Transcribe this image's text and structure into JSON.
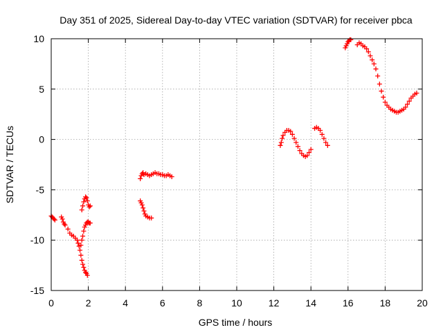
{
  "chart_data": {
    "type": "scatter",
    "title": "Day 351 of 2025, Sidereal Day-to-day VTEC variation (SDTVAR) for receiver pbca",
    "xlabel": "GPS time / hours",
    "ylabel": "SDTVAR / TECUs",
    "xlim": [
      0,
      20
    ],
    "ylim": [
      -15,
      10
    ],
    "xticks": [
      0,
      2,
      4,
      6,
      8,
      10,
      12,
      14,
      16,
      18,
      20
    ],
    "yticks": [
      -15,
      -10,
      -5,
      0,
      5,
      10
    ],
    "grid": true,
    "marker": "+",
    "color": "#ff0000",
    "series": [
      {
        "name": "pbca",
        "segments": [
          [
            [
              0.0,
              -7.6
            ],
            [
              0.05,
              -7.7
            ],
            [
              0.1,
              -7.8
            ],
            [
              0.15,
              -7.9
            ],
            [
              0.2,
              -8.0
            ]
          ],
          [
            [
              0.55,
              -7.7
            ],
            [
              0.6,
              -7.9
            ],
            [
              0.65,
              -8.2
            ],
            [
              0.7,
              -8.4
            ],
            [
              0.75,
              -8.5
            ]
          ],
          [
            [
              0.9,
              -8.9
            ],
            [
              1.0,
              -9.3
            ],
            [
              1.1,
              -9.5
            ],
            [
              1.2,
              -9.6
            ],
            [
              1.3,
              -9.8
            ],
            [
              1.4,
              -10.0
            ],
            [
              1.45,
              -10.3
            ],
            [
              1.5,
              -10.6
            ],
            [
              1.55,
              -11.0
            ],
            [
              1.6,
              -11.5
            ],
            [
              1.65,
              -12.0
            ],
            [
              1.7,
              -12.4
            ],
            [
              1.75,
              -12.7
            ],
            [
              1.8,
              -13.0
            ],
            [
              1.85,
              -13.2
            ],
            [
              1.9,
              -13.3
            ],
            [
              1.95,
              -13.5
            ]
          ],
          [
            [
              1.6,
              -10.5
            ],
            [
              1.65,
              -10.0
            ],
            [
              1.7,
              -9.6
            ],
            [
              1.75,
              -9.1
            ],
            [
              1.8,
              -8.7
            ],
            [
              1.85,
              -8.5
            ],
            [
              1.9,
              -8.3
            ],
            [
              1.95,
              -8.2
            ],
            [
              2.0,
              -8.2
            ],
            [
              2.05,
              -8.3
            ],
            [
              2.1,
              -8.3
            ]
          ],
          [
            [
              1.65,
              -7.0
            ],
            [
              1.7,
              -6.6
            ],
            [
              1.75,
              -6.2
            ],
            [
              1.8,
              -5.9
            ],
            [
              1.85,
              -5.7
            ],
            [
              1.9,
              -5.8
            ],
            [
              1.95,
              -6.1
            ],
            [
              2.0,
              -6.5
            ],
            [
              2.05,
              -6.7
            ],
            [
              2.1,
              -6.6
            ]
          ],
          [
            [
              4.8,
              -3.9
            ],
            [
              4.85,
              -3.6
            ],
            [
              4.9,
              -3.4
            ],
            [
              4.95,
              -3.3
            ],
            [
              5.0,
              -3.5
            ],
            [
              5.1,
              -3.4
            ],
            [
              5.2,
              -3.5
            ],
            [
              5.3,
              -3.6
            ],
            [
              5.4,
              -3.5
            ],
            [
              5.5,
              -3.4
            ],
            [
              5.6,
              -3.3
            ],
            [
              5.7,
              -3.4
            ],
            [
              5.8,
              -3.4
            ],
            [
              5.9,
              -3.5
            ],
            [
              6.0,
              -3.5
            ],
            [
              6.1,
              -3.6
            ],
            [
              6.2,
              -3.6
            ],
            [
              6.3,
              -3.5
            ],
            [
              6.4,
              -3.6
            ],
            [
              6.5,
              -3.7
            ]
          ],
          [
            [
              4.8,
              -6.1
            ],
            [
              4.85,
              -6.3
            ],
            [
              4.9,
              -6.5
            ],
            [
              4.95,
              -6.8
            ],
            [
              5.0,
              -7.1
            ],
            [
              5.05,
              -7.4
            ],
            [
              5.1,
              -7.6
            ],
            [
              5.2,
              -7.7
            ],
            [
              5.3,
              -7.8
            ],
            [
              5.4,
              -7.8
            ]
          ],
          [
            [
              12.35,
              -0.6
            ],
            [
              12.4,
              -0.3
            ],
            [
              12.45,
              0.1
            ],
            [
              12.5,
              0.4
            ],
            [
              12.6,
              0.7
            ],
            [
              12.7,
              0.9
            ],
            [
              12.8,
              0.9
            ],
            [
              12.9,
              0.8
            ],
            [
              13.0,
              0.5
            ],
            [
              13.1,
              0.1
            ],
            [
              13.2,
              -0.3
            ],
            [
              13.3,
              -0.7
            ],
            [
              13.4,
              -1.1
            ],
            [
              13.5,
              -1.4
            ],
            [
              13.6,
              -1.6
            ],
            [
              13.7,
              -1.7
            ],
            [
              13.8,
              -1.6
            ],
            [
              13.9,
              -1.3
            ],
            [
              14.0,
              -1.0
            ]
          ],
          [
            [
              14.2,
              1.1
            ],
            [
              14.3,
              1.2
            ],
            [
              14.4,
              1.1
            ],
            [
              14.5,
              0.9
            ],
            [
              14.6,
              0.5
            ],
            [
              14.7,
              0.1
            ],
            [
              14.8,
              -0.3
            ],
            [
              14.9,
              -0.6
            ]
          ],
          [
            [
              15.85,
              9.1
            ],
            [
              15.9,
              9.3
            ],
            [
              15.95,
              9.5
            ],
            [
              16.0,
              9.7
            ],
            [
              16.05,
              9.8
            ],
            [
              16.1,
              9.9
            ],
            [
              16.15,
              9.9
            ]
          ],
          [
            [
              16.5,
              9.4
            ],
            [
              16.6,
              9.6
            ],
            [
              16.7,
              9.5
            ],
            [
              16.8,
              9.3
            ],
            [
              16.9,
              9.2
            ],
            [
              17.0,
              9.0
            ],
            [
              17.1,
              8.7
            ],
            [
              17.2,
              8.3
            ],
            [
              17.3,
              7.9
            ],
            [
              17.4,
              7.5
            ],
            [
              17.5,
              7.0
            ],
            [
              17.6,
              6.3
            ],
            [
              17.7,
              5.5
            ],
            [
              17.8,
              4.8
            ],
            [
              17.9,
              4.2
            ],
            [
              18.0,
              3.7
            ],
            [
              18.1,
              3.4
            ],
            [
              18.2,
              3.2
            ],
            [
              18.3,
              3.0
            ],
            [
              18.4,
              2.9
            ],
            [
              18.5,
              2.8
            ],
            [
              18.6,
              2.7
            ],
            [
              18.7,
              2.7
            ],
            [
              18.8,
              2.8
            ],
            [
              18.9,
              2.9
            ],
            [
              19.0,
              3.0
            ],
            [
              19.1,
              3.2
            ],
            [
              19.2,
              3.5
            ],
            [
              19.3,
              3.8
            ],
            [
              19.4,
              4.1
            ],
            [
              19.5,
              4.3
            ],
            [
              19.6,
              4.5
            ],
            [
              19.7,
              4.6
            ]
          ]
        ]
      }
    ]
  }
}
